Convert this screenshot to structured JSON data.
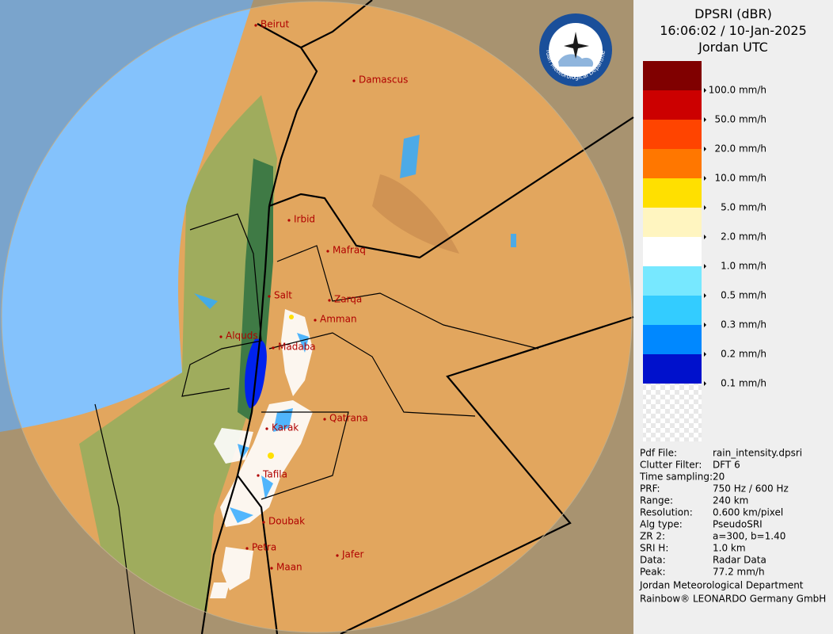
{
  "header": {
    "title": "DPSRI (dBR)",
    "time": "16:06:02 / 10-Jan-2025",
    "zone": "Jordan UTC"
  },
  "logo": {
    "text": "Jordan Meteorological Department"
  },
  "legend": {
    "colors": [
      "#800000",
      "#cc0000",
      "#ff4400",
      "#ff7700",
      "#ffe000",
      "#fff5c0",
      "#ffffff",
      "#77e8ff",
      "#33ccff",
      "#0088ff",
      "#0011cc"
    ],
    "labels": [
      "100.0 mm/h",
      "50.0 mm/h",
      "20.0 mm/h",
      "10.0 mm/h",
      "5.0 mm/h",
      "2.0 mm/h",
      "1.0 mm/h",
      "0.5 mm/h",
      "0.3 mm/h",
      "0.2 mm/h",
      "0.1 mm/h"
    ]
  },
  "info": {
    "rows": [
      [
        "Pdf File:",
        "rain_intensity.dpsri"
      ],
      [
        "Clutter Filter:",
        "DFT 6"
      ],
      [
        "Time sampling:",
        "20"
      ],
      [
        "PRF:",
        "750 Hz / 600 Hz"
      ],
      [
        "Range:",
        "240 km"
      ],
      [
        "Resolution:",
        "0.600 km/pixel"
      ],
      [
        "Alg type:",
        "PseudoSRI"
      ],
      [
        "ZR 2:",
        "a=300, b=1.40"
      ],
      [
        "SRI H:",
        "1.0 km"
      ],
      [
        "Data:",
        "Radar Data"
      ],
      [
        "Peak:",
        "77.2 mm/h"
      ]
    ],
    "footer": [
      "Jordan Meteorological Department",
      "Rainbow® LEONARDO Germany GmbH"
    ]
  },
  "map": {
    "cities": [
      "Beirut",
      "Damascus",
      "Irbid",
      "Mafraq",
      "Salt",
      "Zarqa",
      "Amman",
      "Alquds",
      "Madaba",
      "Qatrana",
      "Karak",
      "Tafila",
      "Doubak",
      "Petra",
      "Jafer",
      "Maan"
    ]
  }
}
